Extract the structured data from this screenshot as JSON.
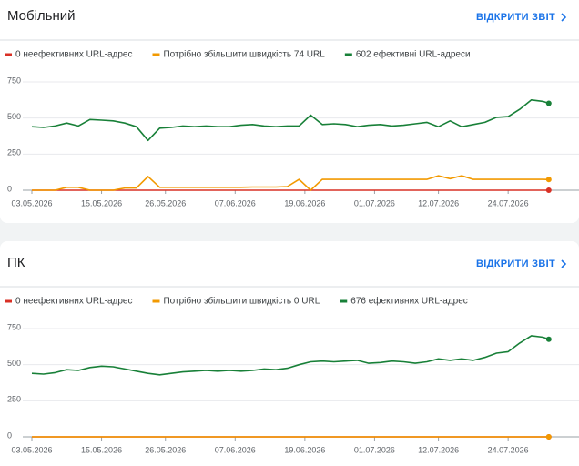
{
  "chart_data": [
    {
      "type": "line",
      "title": "Мобільний",
      "link": "ВІДКРИТИ ЗВІТ",
      "x": [
        "03.05.2026",
        "05.05.2026",
        "07.05.2026",
        "09.05.2026",
        "11.05.2026",
        "13.05.2026",
        "15.05.2026",
        "17.05.2026",
        "19.05.2026",
        "21.05.2026",
        "23.05.2026",
        "25.05.2026",
        "27.05.2026",
        "29.05.2026",
        "31.05.2026",
        "02.06.2026",
        "04.06.2026",
        "06.06.2026",
        "08.06.2026",
        "10.06.2026",
        "12.06.2026",
        "14.06.2026",
        "16.06.2026",
        "18.06.2026",
        "20.06.2026",
        "22.06.2026",
        "24.06.2026",
        "26.06.2026",
        "28.06.2026",
        "30.06.2026",
        "02.07.2026",
        "04.07.2026",
        "06.07.2026",
        "08.07.2026",
        "10.07.2026",
        "12.07.2026",
        "14.07.2026",
        "16.07.2026",
        "18.07.2026",
        "20.07.2026",
        "22.07.2026",
        "24.07.2026",
        "26.07.2026",
        "28.07.2026",
        "30.07.2026",
        "31.07.2026"
      ],
      "series": [
        {
          "name": "0 неефективних URL-адрес",
          "color": "#d93025",
          "values": [
            0,
            0,
            0,
            0,
            0,
            0,
            0,
            0,
            0,
            0,
            0,
            0,
            0,
            0,
            0,
            0,
            0,
            0,
            0,
            0,
            0,
            0,
            0,
            0,
            0,
            0,
            0,
            0,
            0,
            0,
            0,
            0,
            0,
            0,
            0,
            0,
            0,
            0,
            0,
            0,
            0,
            0,
            0,
            0,
            0,
            0
          ]
        },
        {
          "name": "Потрібно збільшити швидкість 74 URL",
          "color": "#f29900",
          "values": [
            0,
            0,
            0,
            20,
            20,
            0,
            0,
            0,
            15,
            15,
            95,
            20,
            20,
            20,
            20,
            20,
            20,
            20,
            20,
            22,
            22,
            22,
            25,
            75,
            0,
            75,
            75,
            75,
            75,
            75,
            75,
            75,
            75,
            75,
            75,
            100,
            80,
            100,
            75,
            75,
            75,
            75,
            75,
            75,
            75,
            74
          ]
        },
        {
          "name": "602 ефективні URL-адреси",
          "color": "#188038",
          "values": [
            440,
            435,
            445,
            465,
            445,
            490,
            485,
            480,
            465,
            440,
            345,
            430,
            435,
            445,
            440,
            445,
            440,
            440,
            450,
            455,
            445,
            440,
            445,
            445,
            520,
            455,
            460,
            455,
            440,
            450,
            455,
            445,
            450,
            460,
            470,
            440,
            480,
            440,
            455,
            470,
            505,
            510,
            560,
            625,
            615,
            602
          ]
        }
      ],
      "ylim": [
        0,
        750
      ],
      "yticks": [
        0,
        250,
        500,
        750
      ],
      "xticks": [
        "03.05.2026",
        "15.05.2026",
        "26.05.2026",
        "07.06.2026",
        "19.06.2026",
        "01.07.2026",
        "12.07.2026",
        "24.07.2026"
      ],
      "grid": true
    },
    {
      "type": "line",
      "title": "ПК",
      "link": "ВІДКРИТИ ЗВІТ",
      "x": [
        "03.05.2026",
        "05.05.2026",
        "07.05.2026",
        "09.05.2026",
        "11.05.2026",
        "13.05.2026",
        "15.05.2026",
        "17.05.2026",
        "19.05.2026",
        "21.05.2026",
        "23.05.2026",
        "25.05.2026",
        "27.05.2026",
        "29.05.2026",
        "31.05.2026",
        "02.06.2026",
        "04.06.2026",
        "06.06.2026",
        "08.06.2026",
        "10.06.2026",
        "12.06.2026",
        "14.06.2026",
        "16.06.2026",
        "18.06.2026",
        "20.06.2026",
        "22.06.2026",
        "24.06.2026",
        "26.06.2026",
        "28.06.2026",
        "30.06.2026",
        "02.07.2026",
        "04.07.2026",
        "06.07.2026",
        "08.07.2026",
        "10.07.2026",
        "12.07.2026",
        "14.07.2026",
        "16.07.2026",
        "18.07.2026",
        "20.07.2026",
        "22.07.2026",
        "24.07.2026",
        "26.07.2026",
        "28.07.2026",
        "30.07.2026",
        "31.07.2026"
      ],
      "series": [
        {
          "name": "0 неефективних URL-адрес",
          "color": "#d93025",
          "values": [
            0,
            0,
            0,
            0,
            0,
            0,
            0,
            0,
            0,
            0,
            0,
            0,
            0,
            0,
            0,
            0,
            0,
            0,
            0,
            0,
            0,
            0,
            0,
            0,
            0,
            0,
            0,
            0,
            0,
            0,
            0,
            0,
            0,
            0,
            0,
            0,
            0,
            0,
            0,
            0,
            0,
            0,
            0,
            0,
            0,
            0
          ]
        },
        {
          "name": "Потрібно збільшити швидкість 0 URL",
          "color": "#f29900",
          "values": [
            0,
            0,
            0,
            0,
            0,
            0,
            0,
            0,
            0,
            0,
            0,
            0,
            0,
            0,
            0,
            0,
            0,
            0,
            0,
            0,
            0,
            0,
            0,
            0,
            0,
            0,
            0,
            0,
            0,
            0,
            0,
            0,
            0,
            0,
            0,
            0,
            0,
            0,
            0,
            0,
            0,
            0,
            0,
            0,
            0,
            0
          ]
        },
        {
          "name": "676 ефективних URL-адрес",
          "color": "#188038",
          "values": [
            440,
            435,
            445,
            465,
            460,
            480,
            490,
            485,
            470,
            455,
            440,
            430,
            440,
            450,
            455,
            460,
            455,
            460,
            455,
            460,
            470,
            465,
            475,
            500,
            520,
            525,
            520,
            525,
            530,
            510,
            515,
            525,
            520,
            510,
            520,
            540,
            530,
            540,
            530,
            550,
            580,
            590,
            650,
            700,
            690,
            676
          ]
        }
      ],
      "ylim": [
        0,
        750
      ],
      "yticks": [
        0,
        250,
        500,
        750
      ],
      "xticks": [
        "03.05.2026",
        "15.05.2026",
        "26.05.2026",
        "07.06.2026",
        "19.06.2026",
        "01.07.2026",
        "12.07.2026",
        "24.07.2026"
      ],
      "grid": true
    }
  ]
}
